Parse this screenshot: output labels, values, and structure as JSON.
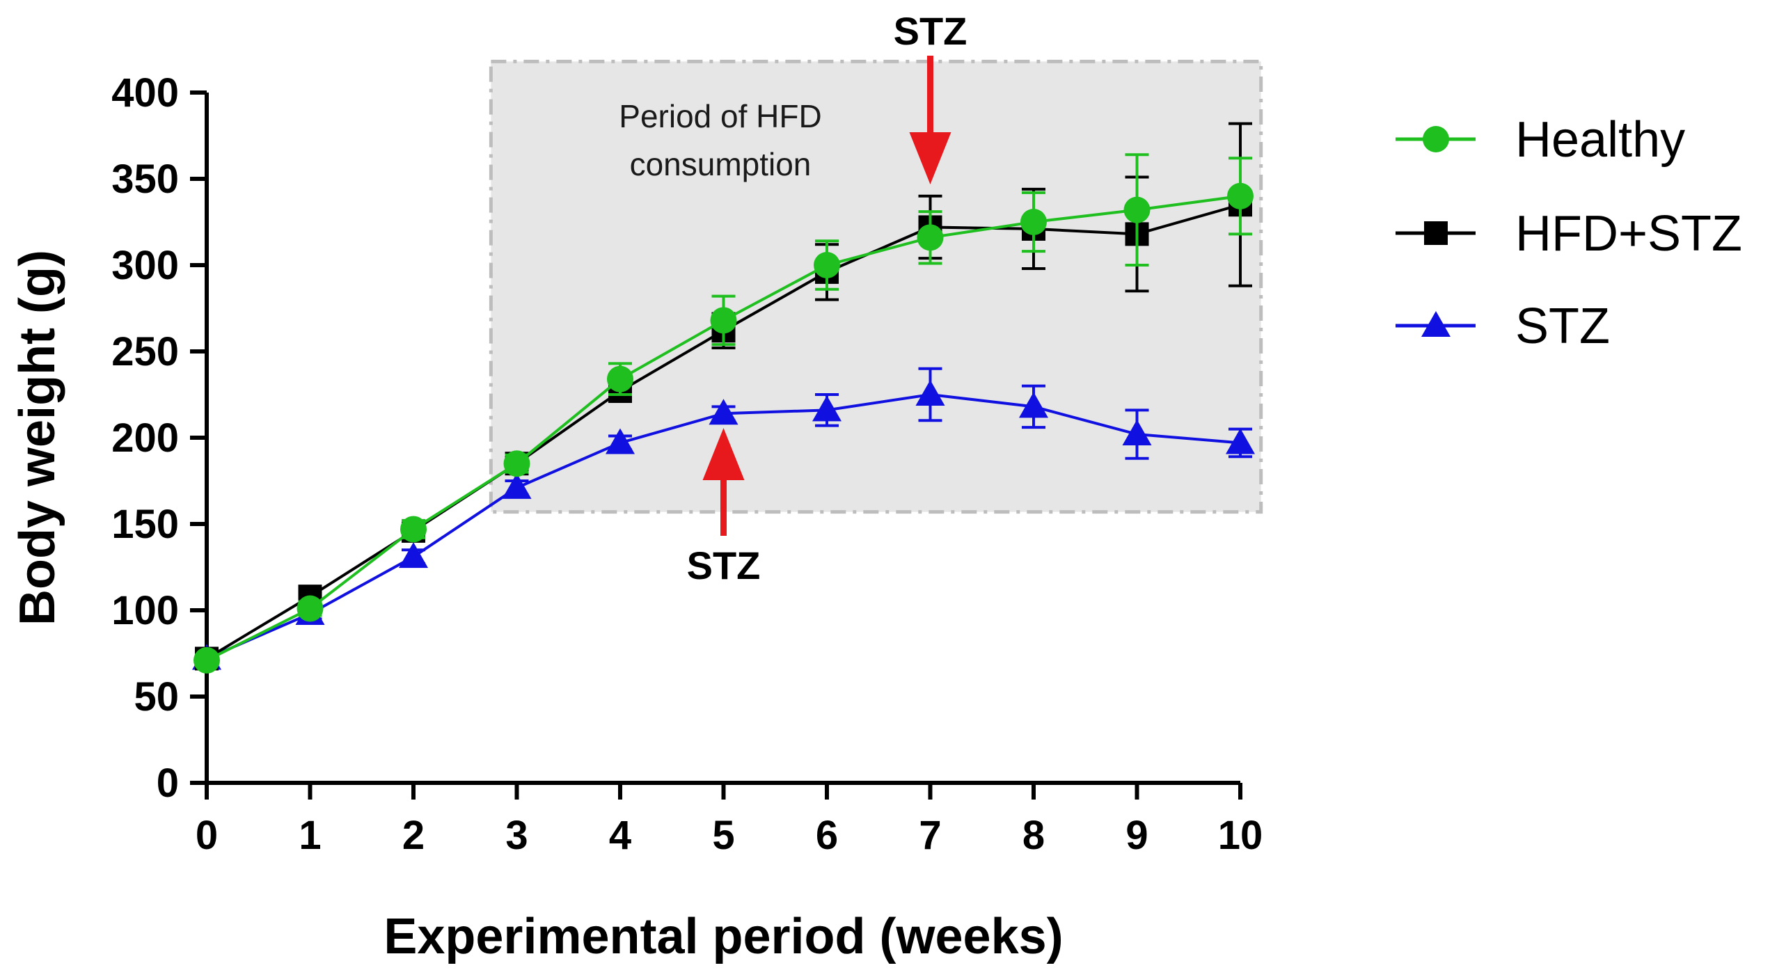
{
  "chart_data": {
    "type": "line",
    "title": "",
    "xlabel": "Experimental period (weeks)",
    "ylabel": "Body weight (g)",
    "xlim": [
      0,
      10
    ],
    "ylim": [
      0,
      400
    ],
    "x_ticks": [
      0,
      1,
      2,
      3,
      4,
      5,
      6,
      7,
      8,
      9,
      10
    ],
    "y_ticks": [
      0,
      50,
      100,
      150,
      200,
      250,
      300,
      350,
      400
    ],
    "x": [
      0,
      1,
      2,
      3,
      4,
      5,
      6,
      7,
      8,
      9,
      10
    ],
    "series": [
      {
        "name": "Healthy",
        "color": "#1fbf1f",
        "marker": "circle",
        "values": [
          71,
          101,
          147,
          185,
          234,
          268,
          300,
          316,
          325,
          332,
          340
        ],
        "errors": [
          3,
          4,
          5,
          5,
          9,
          14,
          14,
          15,
          17,
          32,
          22
        ]
      },
      {
        "name": "HFD+STZ",
        "color": "#000000",
        "marker": "square",
        "values": [
          72,
          108,
          146,
          185,
          227,
          262,
          296,
          322,
          321,
          318,
          335
        ],
        "errors": [
          3,
          5,
          5,
          5,
          6,
          10,
          16,
          18,
          23,
          33,
          47
        ]
      },
      {
        "name": "STZ",
        "color": "#1010e0",
        "marker": "triangle",
        "values": [
          72,
          98,
          131,
          171,
          197,
          214,
          216,
          225,
          218,
          202,
          197
        ],
        "errors": [
          3,
          3,
          4,
          4,
          4,
          4,
          9,
          15,
          12,
          14,
          8
        ]
      }
    ],
    "legend_position": "right",
    "annotations": {
      "region": {
        "label_line1": "Period of HFD",
        "label_line2": "consumption",
        "x_range": [
          2.75,
          10.2
        ],
        "y_range": [
          157,
          418
        ]
      },
      "arrows": [
        {
          "label": "STZ",
          "x": 5,
          "direction": "up",
          "color": "#e8191c"
        },
        {
          "label": "STZ",
          "x": 7,
          "direction": "down",
          "color": "#e8191c"
        }
      ]
    }
  }
}
